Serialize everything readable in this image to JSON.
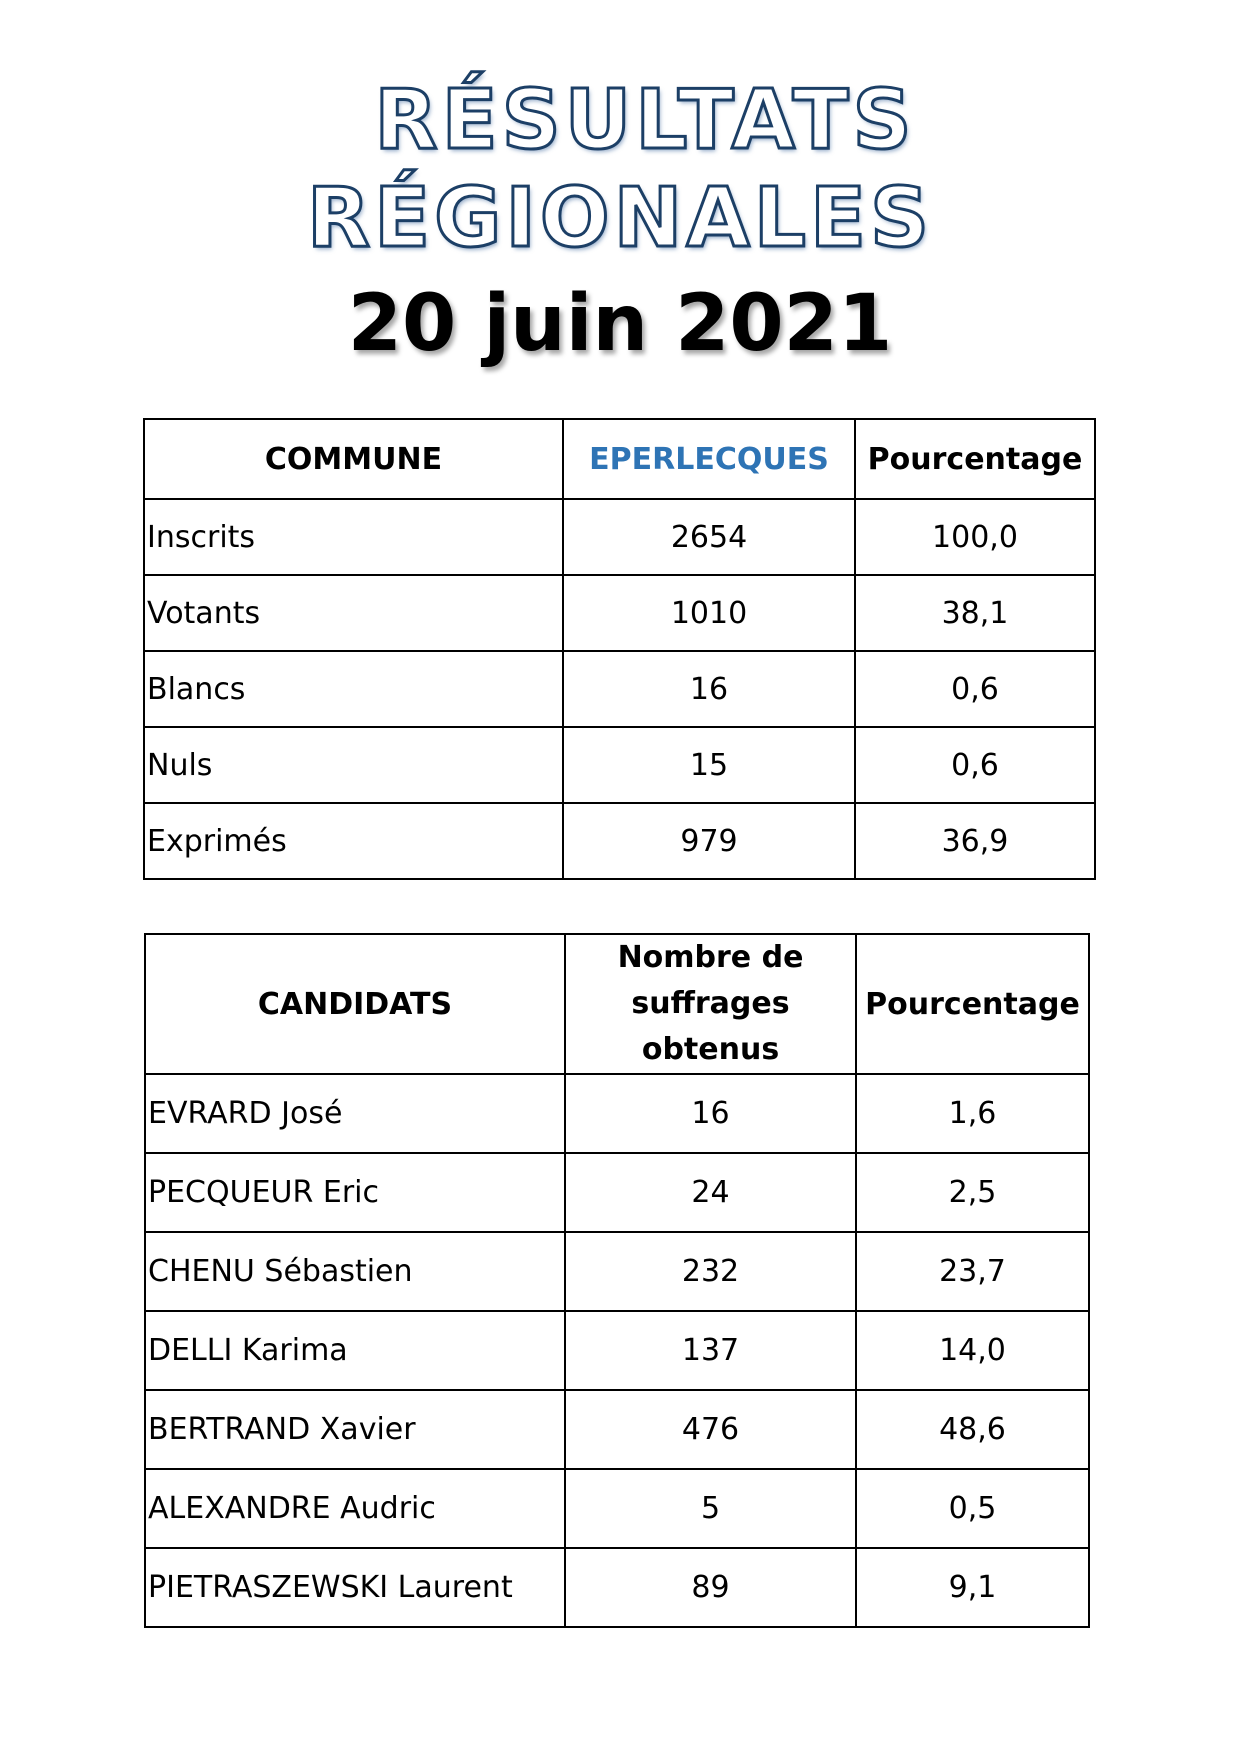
{
  "header": {
    "title_line1": "RÉSULTATS",
    "title_line2": "RÉGIONALES",
    "date": "20 juin 2021"
  },
  "commune_table": {
    "columns": [
      "COMMUNE",
      "EPERLECQUES",
      "Pourcentage"
    ],
    "accent_color": "#2e74b5",
    "rows": [
      {
        "label": "Inscrits",
        "value": "2654",
        "percent": "100,0"
      },
      {
        "label": "Votants",
        "value": "1010",
        "percent": "38,1"
      },
      {
        "label": "Blancs",
        "value": "16",
        "percent": "0,6"
      },
      {
        "label": "Nuls",
        "value": "15",
        "percent": "0,6"
      },
      {
        "label": "Exprimés",
        "value": "979",
        "percent": "36,9"
      }
    ]
  },
  "candidates_table": {
    "columns": [
      "CANDIDATS",
      "Nombre de suffrages obtenus",
      "Pourcentage"
    ],
    "column2_line1": "Nombre de",
    "column2_line2": "suffrages obtenus",
    "rows": [
      {
        "name": "EVRARD José",
        "votes": "16",
        "percent": "1,6"
      },
      {
        "name": "PECQUEUR Eric",
        "votes": "24",
        "percent": "2,5"
      },
      {
        "name": "CHENU Sébastien",
        "votes": "232",
        "percent": "23,7"
      },
      {
        "name": "DELLI Karima",
        "votes": "137",
        "percent": "14,0"
      },
      {
        "name": "BERTRAND Xavier",
        "votes": "476",
        "percent": "48,6"
      },
      {
        "name": "ALEXANDRE Audric",
        "votes": "5",
        "percent": "0,5"
      },
      {
        "name": "PIETRASZEWSKI Laurent",
        "votes": "89",
        "percent": "9,1"
      }
    ]
  }
}
